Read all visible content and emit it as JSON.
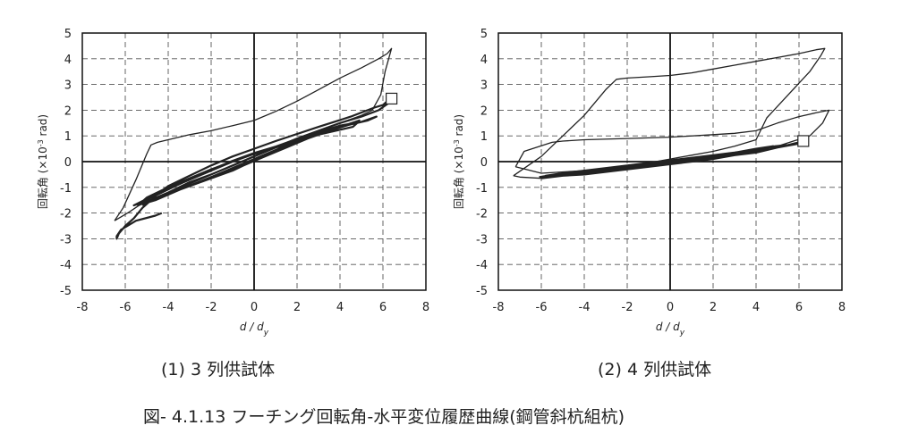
{
  "caption": "図- 4.1.13  フーチング回転角-水平変位履歴曲線(鋼管斜杭組杭)",
  "chart_data": [
    {
      "type": "line",
      "subtitle": "(1) 3 列供試体",
      "xlabel": "d / d_y",
      "ylabel": "回転角 (×10^-3 rad)",
      "xlim": [
        -8,
        8
      ],
      "ylim": [
        -5,
        5
      ],
      "xticks": [
        "-8",
        "-6",
        "-4",
        "-2",
        "0",
        "2",
        "4",
        "6",
        "8"
      ],
      "yticks": [
        "5",
        "4",
        "3",
        "2",
        "1",
        "0",
        "-1",
        "-2",
        "-3",
        "-4",
        "-5"
      ],
      "grid": true,
      "series": [
        {
          "x": [
            -5.2,
            -4.6,
            -4.0,
            -3.0,
            -2.0,
            -1.0,
            0.0,
            1.0,
            2.0,
            3.0,
            4.0,
            5.0,
            5.7,
            5.3,
            4.0,
            3.0,
            2.0,
            1.0,
            0.0,
            -1.0,
            -2.0,
            -3.0,
            -4.0,
            -5.0,
            -5.4,
            -4.8,
            -3.5,
            -2.0,
            -1.0,
            0.0,
            1.0,
            2.0,
            3.0,
            4.0,
            4.9,
            4.5,
            3.5,
            2.5,
            1.5,
            0.5,
            -0.5,
            -1.5,
            -2.5,
            -3.5,
            -4.5,
            -5.2,
            -4.6,
            -3.2,
            -2.0,
            -1.0,
            0.0,
            1.0,
            2.0,
            3.0,
            4.0,
            4.8,
            4.6,
            3.0,
            1.0,
            0.0,
            -1.0,
            -2.0,
            -3.0,
            -4.0,
            -5.0,
            -5.6,
            -5.0,
            -4.0,
            -3.0,
            -2.0,
            -1.0,
            0.0,
            1.0,
            2.0,
            3.0,
            4.0,
            5.0,
            5.8,
            6.3,
            6.3,
            6.2,
            6.0,
            5.6,
            4.5,
            3.0,
            1.0,
            0.0,
            -1.0,
            -2.0,
            -3.0,
            -4.0,
            -4.5,
            -4.8,
            -5.2,
            -5.6,
            -6.0,
            -6.3,
            -6.4,
            -6.4,
            -6.2,
            -5.5,
            -4.6,
            -4.3
          ],
          "y": [
            -1.7,
            -1.45,
            -1.2,
            -0.8,
            -0.5,
            -0.15,
            0.2,
            0.55,
            0.85,
            1.15,
            1.4,
            1.55,
            1.75,
            1.6,
            1.35,
            1.1,
            0.85,
            0.55,
            0.3,
            0.0,
            -0.3,
            -0.65,
            -1.0,
            -1.4,
            -1.7,
            -1.5,
            -1.1,
            -0.65,
            -0.35,
            0.05,
            0.4,
            0.75,
            1.05,
            1.35,
            1.6,
            1.45,
            1.2,
            0.9,
            0.55,
            0.2,
            -0.15,
            -0.45,
            -0.8,
            -1.1,
            -1.45,
            -1.65,
            -1.5,
            -1.0,
            -0.6,
            -0.25,
            0.1,
            0.45,
            0.8,
            1.1,
            1.4,
            1.5,
            1.35,
            1.05,
            0.55,
            0.3,
            0.0,
            -0.35,
            -0.7,
            -1.05,
            -1.45,
            -1.7,
            -1.55,
            -1.2,
            -0.85,
            -0.5,
            -0.15,
            0.2,
            0.55,
            0.9,
            1.2,
            1.5,
            1.75,
            2.0,
            2.3,
            2.45,
            2.35,
            2.2,
            2.1,
            1.75,
            1.35,
            0.8,
            0.5,
            0.2,
            -0.15,
            -0.55,
            -0.95,
            -1.25,
            -1.5,
            -1.8,
            -2.2,
            -2.5,
            -2.8,
            -3.0,
            -2.9,
            -2.65,
            -2.3,
            -2.1,
            -2.0
          ]
        },
        {
          "x": [
            -6.5,
            -6.1,
            -5.5,
            -5.0,
            -4.8,
            -4.5,
            -4.0,
            -3.0,
            -2.0,
            -1.0,
            0.0,
            1.0,
            2.0,
            3.0,
            4.0,
            5.0,
            5.8,
            6.2,
            6.4,
            6.3,
            6.1,
            5.9,
            5.5,
            5.0,
            4.0,
            3.0,
            2.0,
            1.0,
            0.0,
            -1.0,
            -2.0,
            -3.0,
            -4.0,
            -5.0,
            -5.8,
            -6.2,
            -6.5
          ],
          "y": [
            -2.3,
            -1.8,
            -0.7,
            0.3,
            0.65,
            0.75,
            0.85,
            1.05,
            1.2,
            1.4,
            1.6,
            1.95,
            2.35,
            2.8,
            3.25,
            3.65,
            4.0,
            4.2,
            4.4,
            4.1,
            3.5,
            2.6,
            2.0,
            1.8,
            1.5,
            1.2,
            0.9,
            0.6,
            0.35,
            0.05,
            -0.3,
            -0.7,
            -1.1,
            -1.5,
            -1.95,
            -2.15,
            -2.3
          ]
        }
      ],
      "marker": {
        "x": 6.4,
        "y": 2.45
      }
    },
    {
      "type": "line",
      "subtitle": "(2) 4 列供試体",
      "xlabel": "d / d_y",
      "ylabel": "回転角 (×10^-3 rad)",
      "xlim": [
        -8,
        8
      ],
      "ylim": [
        -5,
        5
      ],
      "xticks": [
        "-8",
        "-6",
        "-4",
        "-2",
        "0",
        "2",
        "4",
        "6",
        "8"
      ],
      "yticks": [
        "5",
        "4",
        "3",
        "2",
        "1",
        "0",
        "-1",
        "-2",
        "-3",
        "-4",
        "-5"
      ],
      "grid": true,
      "series": [
        {
          "x": [
            -6.1,
            -5.0,
            -4.0,
            -3.0,
            -2.0,
            -1.0,
            0.0,
            1.0,
            2.0,
            3.0,
            4.0,
            4.8,
            4.2,
            3.0,
            2.0,
            1.0,
            0.0,
            -1.0,
            -2.0,
            -3.0,
            -4.0,
            -5.0,
            -5.8,
            -5.0,
            -4.0,
            -3.0,
            -2.0,
            -1.0,
            0.0,
            1.0,
            2.0,
            3.0,
            4.0,
            4.6,
            4.0,
            3.0,
            2.0,
            1.0,
            0.0,
            -1.0,
            -2.0,
            -3.0,
            -4.0,
            -5.0,
            -6.0,
            -5.2,
            -4.0,
            -3.0,
            -2.0,
            -1.0,
            0.0,
            1.0,
            2.0,
            3.0,
            4.0,
            4.9,
            5.5,
            6.0,
            6.3,
            6.2,
            6.0,
            5.0,
            4.0,
            3.0,
            2.0,
            1.0,
            0.0,
            -1.0,
            -2.0,
            -3.0,
            -4.0,
            -5.0,
            -6.0
          ],
          "y": [
            -0.6,
            -0.45,
            -0.35,
            -0.25,
            -0.15,
            -0.05,
            0.05,
            0.15,
            0.25,
            0.35,
            0.5,
            0.6,
            0.5,
            0.35,
            0.25,
            0.15,
            0.05,
            -0.05,
            -0.15,
            -0.25,
            -0.35,
            -0.45,
            -0.55,
            -0.5,
            -0.4,
            -0.3,
            -0.2,
            -0.1,
            0.0,
            0.1,
            0.2,
            0.3,
            0.45,
            0.55,
            0.4,
            0.25,
            0.15,
            0.05,
            -0.05,
            -0.15,
            -0.25,
            -0.35,
            -0.45,
            -0.5,
            -0.6,
            -0.55,
            -0.45,
            -0.35,
            -0.25,
            -0.15,
            -0.05,
            0.1,
            0.2,
            0.35,
            0.45,
            0.6,
            0.65,
            0.75,
            0.85,
            0.75,
            0.7,
            0.55,
            0.35,
            0.25,
            0.1,
            0.0,
            -0.1,
            -0.2,
            -0.3,
            -0.4,
            -0.5,
            -0.55,
            -0.65
          ]
        },
        {
          "x": [
            -7.2,
            -6.8,
            -5.5,
            -5.0,
            -4.0,
            -2.0,
            0.0,
            2.0,
            3.0,
            4.0,
            5.0,
            6.0,
            6.8,
            7.4,
            7.1,
            6.5,
            5.0,
            4.0,
            2.0,
            0.0,
            -2.0,
            -4.0,
            -6.0,
            -7.2
          ],
          "y": [
            -0.2,
            0.4,
            0.75,
            0.8,
            0.85,
            0.9,
            0.95,
            1.05,
            1.1,
            1.2,
            1.5,
            1.75,
            1.9,
            2.0,
            1.5,
            1.0,
            0.6,
            0.45,
            0.2,
            0.0,
            -0.2,
            -0.35,
            -0.45,
            -0.2
          ]
        },
        {
          "x": [
            -7.3,
            -6.0,
            -5.0,
            -4.0,
            -3.0,
            -2.5,
            -2.0,
            -1.0,
            0.0,
            1.0,
            2.0,
            3.0,
            4.0,
            5.0,
            6.0,
            6.8,
            7.2,
            7.0,
            6.5,
            5.5,
            4.5,
            4.0,
            3.0,
            2.0,
            1.0,
            0.0,
            -1.0,
            -2.0,
            -3.0,
            -4.0,
            -5.0,
            -6.0,
            -7.0,
            -7.3
          ],
          "y": [
            -0.55,
            0.2,
            1.0,
            1.8,
            2.8,
            3.2,
            3.25,
            3.3,
            3.35,
            3.45,
            3.6,
            3.75,
            3.9,
            4.05,
            4.2,
            4.35,
            4.4,
            4.1,
            3.5,
            2.6,
            1.7,
            0.85,
            0.6,
            0.4,
            0.25,
            0.1,
            -0.05,
            -0.2,
            -0.35,
            -0.45,
            -0.55,
            -0.65,
            -0.6,
            -0.55
          ]
        }
      ],
      "marker": {
        "x": 6.2,
        "y": 0.8
      }
    }
  ]
}
